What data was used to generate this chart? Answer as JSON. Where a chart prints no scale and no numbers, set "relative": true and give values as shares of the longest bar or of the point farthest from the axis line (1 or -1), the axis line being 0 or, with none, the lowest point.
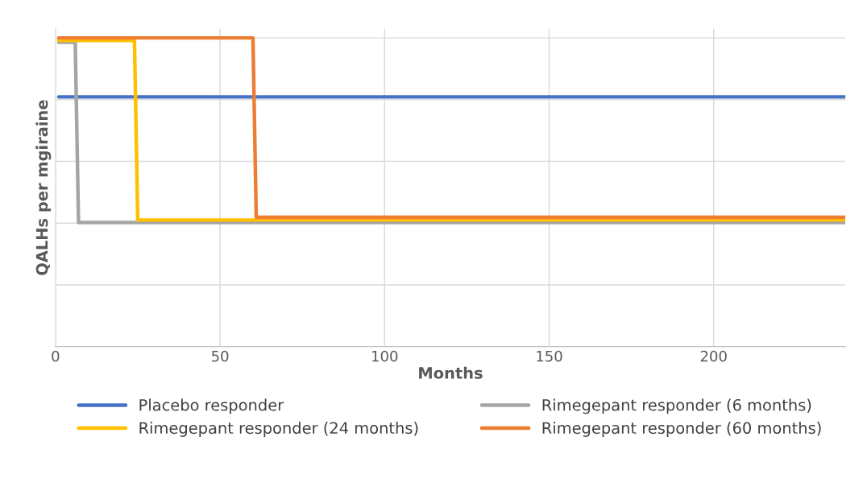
{
  "chart_data": {
    "type": "line",
    "relative": true,
    "xlabel": "Months",
    "ylabel": "QALHs per mgiraine",
    "xlim": [
      0,
      240
    ],
    "xticks": [
      0,
      50,
      100,
      150,
      200
    ],
    "grid": true,
    "legend": "bottom",
    "marker": "none",
    "line_style": "solid",
    "series": [
      {
        "name": "Placebo responder",
        "color": "#4472c4",
        "x": [
          1,
          240
        ],
        "values": [
          0.809,
          0.809
        ]
      },
      {
        "name": "Rimegepant responder (6 months)",
        "color": "#a5a5a5",
        "x": [
          1,
          6,
          7,
          240
        ],
        "values": [
          0.986,
          0.986,
          0.402,
          0.402
        ]
      },
      {
        "name": "Rimegepant responder (24 months)",
        "color": "#ffc000",
        "x": [
          1,
          24,
          25,
          240
        ],
        "values": [
          0.992,
          0.992,
          0.41,
          0.41
        ]
      },
      {
        "name": "Rimegepant responder (60 months)",
        "color": "#ed7d31",
        "x": [
          1,
          60,
          61,
          240
        ],
        "values": [
          1,
          1,
          0.419,
          0.419
        ]
      }
    ]
  }
}
